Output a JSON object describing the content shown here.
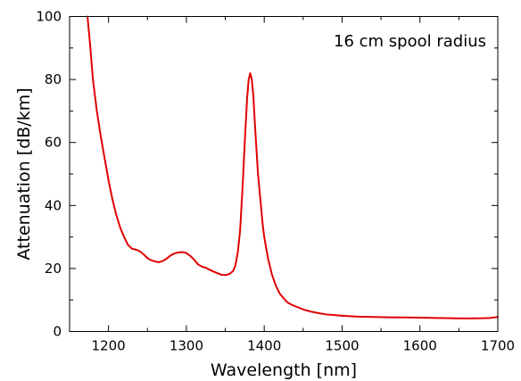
{
  "chart_data": {
    "type": "line",
    "title": "",
    "xlabel": "Wavelength [nm]",
    "ylabel": "Attenuation [dB/km]",
    "xlim": [
      1150,
      1700
    ],
    "ylim": [
      0,
      100
    ],
    "x_ticks": [
      1200,
      1300,
      1400,
      1500,
      1600,
      1700
    ],
    "x_tick_labels": [
      "1200",
      "1300",
      "1400",
      "1500",
      "1600",
      "1700"
    ],
    "x_minor_ticks": [
      1150,
      1250,
      1350,
      1450,
      1550,
      1650
    ],
    "y_ticks": [
      0,
      20,
      40,
      60,
      80,
      100
    ],
    "y_tick_labels": [
      "0",
      "20",
      "40",
      "60",
      "80",
      "100"
    ],
    "y_minor_ticks": [
      10,
      30,
      50,
      70,
      90
    ],
    "grid": false,
    "legend": "none",
    "annotation": "16 cm spool radius",
    "line_color": "#e00000",
    "series": [
      {
        "x": [
          1173,
          1176,
          1180,
          1185,
          1190,
          1195,
          1200,
          1205,
          1210,
          1215,
          1220,
          1225,
          1230,
          1235,
          1240,
          1245,
          1250,
          1255,
          1260,
          1265,
          1270,
          1275,
          1280,
          1285,
          1290,
          1295,
          1300,
          1305,
          1310,
          1315,
          1320,
          1325,
          1330,
          1335,
          1340,
          1345,
          1350,
          1355,
          1360,
          1363,
          1366,
          1369,
          1372,
          1375,
          1378,
          1380,
          1382,
          1384,
          1386,
          1388,
          1390,
          1392,
          1395,
          1398,
          1400,
          1405,
          1410,
          1415,
          1420,
          1425,
          1430,
          1435,
          1440,
          1450,
          1460,
          1470,
          1480,
          1490,
          1500,
          1520,
          1540,
          1560,
          1580,
          1600,
          1620,
          1640,
          1660,
          1680,
          1690,
          1700
        ],
        "values": [
          100,
          92,
          80,
          70,
          62,
          55,
          48,
          42,
          37,
          33,
          30,
          27.5,
          26.3,
          26.0,
          25.5,
          24.5,
          23.3,
          22.6,
          22.2,
          22.0,
          22.4,
          23.2,
          24.2,
          24.8,
          25.1,
          25.2,
          24.9,
          24.0,
          22.8,
          21.3,
          20.6,
          20.2,
          19.6,
          19.0,
          18.5,
          18.0,
          17.9,
          18.2,
          19.2,
          21,
          25,
          32,
          45,
          60,
          74,
          80,
          82,
          80,
          75,
          66,
          58,
          50,
          42,
          34,
          30,
          23,
          18,
          14.5,
          12,
          10.5,
          9.2,
          8.5,
          8.0,
          7.0,
          6.3,
          5.8,
          5.4,
          5.2,
          5.0,
          4.7,
          4.6,
          4.5,
          4.45,
          4.4,
          4.3,
          4.2,
          4.15,
          4.2,
          4.3,
          4.6
        ]
      }
    ]
  }
}
